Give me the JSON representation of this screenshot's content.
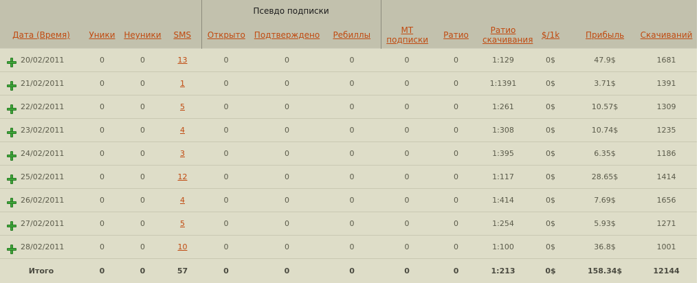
{
  "header": {
    "group_label": "Псевдо подписки",
    "columns": [
      "Дата (Время)",
      "Уники",
      "Неуники",
      "SMS",
      "Открыто",
      "Подтверждено",
      "Ребиллы",
      "МТ подписки",
      "Ратио",
      "Ратио скачивания",
      "$/1k",
      "Прибыль",
      "Скачиваний"
    ]
  },
  "rows": [
    {
      "date": "20/02/2011",
      "uniki": "0",
      "neuniki": "0",
      "sms": "13",
      "open": "0",
      "confirmed": "0",
      "rebills": "0",
      "mt": "0",
      "ratio": "0",
      "dl_ratio": "1:129",
      "per1k": "0$",
      "profit": "47.9$",
      "downloads": "1681"
    },
    {
      "date": "21/02/2011",
      "uniki": "0",
      "neuniki": "0",
      "sms": "1",
      "open": "0",
      "confirmed": "0",
      "rebills": "0",
      "mt": "0",
      "ratio": "0",
      "dl_ratio": "1:1391",
      "per1k": "0$",
      "profit": "3.71$",
      "downloads": "1391"
    },
    {
      "date": "22/02/2011",
      "uniki": "0",
      "neuniki": "0",
      "sms": "5",
      "open": "0",
      "confirmed": "0",
      "rebills": "0",
      "mt": "0",
      "ratio": "0",
      "dl_ratio": "1:261",
      "per1k": "0$",
      "profit": "10.57$",
      "downloads": "1309"
    },
    {
      "date": "23/02/2011",
      "uniki": "0",
      "neuniki": "0",
      "sms": "4",
      "open": "0",
      "confirmed": "0",
      "rebills": "0",
      "mt": "0",
      "ratio": "0",
      "dl_ratio": "1:308",
      "per1k": "0$",
      "profit": "10.74$",
      "downloads": "1235"
    },
    {
      "date": "24/02/2011",
      "uniki": "0",
      "neuniki": "0",
      "sms": "3",
      "open": "0",
      "confirmed": "0",
      "rebills": "0",
      "mt": "0",
      "ratio": "0",
      "dl_ratio": "1:395",
      "per1k": "0$",
      "profit": "6.35$",
      "downloads": "1186"
    },
    {
      "date": "25/02/2011",
      "uniki": "0",
      "neuniki": "0",
      "sms": "12",
      "open": "0",
      "confirmed": "0",
      "rebills": "0",
      "mt": "0",
      "ratio": "0",
      "dl_ratio": "1:117",
      "per1k": "0$",
      "profit": "28.65$",
      "downloads": "1414"
    },
    {
      "date": "26/02/2011",
      "uniki": "0",
      "neuniki": "0",
      "sms": "4",
      "open": "0",
      "confirmed": "0",
      "rebills": "0",
      "mt": "0",
      "ratio": "0",
      "dl_ratio": "1:414",
      "per1k": "0$",
      "profit": "7.69$",
      "downloads": "1656"
    },
    {
      "date": "27/02/2011",
      "uniki": "0",
      "neuniki": "0",
      "sms": "5",
      "open": "0",
      "confirmed": "0",
      "rebills": "0",
      "mt": "0",
      "ratio": "0",
      "dl_ratio": "1:254",
      "per1k": "0$",
      "profit": "5.93$",
      "downloads": "1271"
    },
    {
      "date": "28/02/2011",
      "uniki": "0",
      "neuniki": "0",
      "sms": "10",
      "open": "0",
      "confirmed": "0",
      "rebills": "0",
      "mt": "0",
      "ratio": "0",
      "dl_ratio": "1:100",
      "per1k": "0$",
      "profit": "36.8$",
      "downloads": "1001"
    }
  ],
  "total": {
    "label": "Итого",
    "uniki": "0",
    "neuniki": "0",
    "sms": "57",
    "open": "0",
    "confirmed": "0",
    "rebills": "0",
    "mt": "0",
    "ratio": "0",
    "dl_ratio": "1:213",
    "per1k": "0$",
    "profit": "158.34$",
    "downloads": "12144"
  },
  "colors": {
    "header_bg": "#c2c1ad",
    "body_bg": "#deddc8",
    "link": "#c04a10",
    "plus": "#3fa83a"
  }
}
